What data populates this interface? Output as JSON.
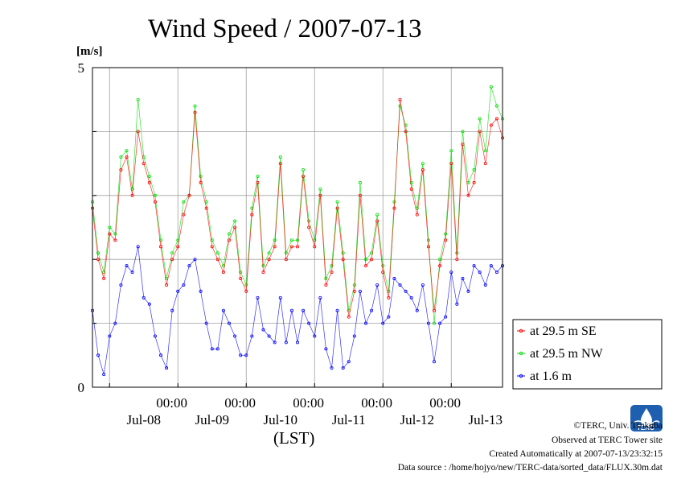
{
  "chart_data": {
    "type": "line",
    "title": "Wind Speed / 2007-07-13",
    "ylabel": "[m/s]",
    "xlabel": "(LST)",
    "ylim": [
      0,
      5
    ],
    "y_tick_labels": [
      "0",
      "5"
    ],
    "x_time_labels": [
      "00:00",
      "00:00",
      "00:00",
      "00:00",
      "00:00"
    ],
    "x_day_labels": [
      "Jul-08",
      "Jul-09",
      "Jul-10",
      "Jul-11",
      "Jul-12",
      "Jul-13"
    ],
    "x_unit": "hours since 2007-07-07 18:00 LST",
    "xlim": [
      0,
      144
    ],
    "grid": true,
    "legend_position": "right",
    "colors": {
      "at 29.5 m SE": "#ff0000",
      "at 29.5 m NW": "#00dd00",
      "at 1.6 m": "#0000ff"
    },
    "series": [
      {
        "name": "at 29.5 m SE",
        "x": [
          0,
          2,
          4,
          6,
          8,
          10,
          12,
          14,
          16,
          18,
          20,
          22,
          24,
          26,
          28,
          30,
          32,
          34,
          36,
          38,
          40,
          42,
          44,
          46,
          48,
          50,
          52,
          54,
          56,
          58,
          60,
          62,
          64,
          66,
          68,
          70,
          72,
          74,
          76,
          78,
          80,
          82,
          84,
          86,
          88,
          90,
          92,
          94,
          96,
          98,
          100,
          102,
          104,
          106,
          108,
          110,
          112,
          114,
          116,
          118,
          120,
          122,
          124,
          126,
          128,
          130,
          132,
          134,
          136,
          138,
          140,
          142,
          144
        ],
        "values": [
          2.8,
          2.0,
          1.7,
          2.4,
          2.3,
          3.4,
          3.6,
          3.0,
          4.0,
          3.5,
          3.2,
          2.9,
          2.2,
          1.6,
          2.0,
          2.2,
          2.7,
          3.0,
          4.3,
          3.2,
          2.8,
          2.2,
          2.0,
          1.8,
          2.3,
          2.5,
          1.7,
          1.5,
          2.7,
          3.2,
          1.8,
          2.0,
          2.2,
          3.5,
          2.0,
          2.2,
          2.2,
          3.3,
          2.5,
          2.2,
          3.0,
          1.6,
          1.8,
          2.8,
          2.0,
          1.1,
          1.5,
          3.0,
          1.9,
          2.0,
          2.6,
          1.8,
          1.4,
          2.8,
          4.5,
          4.0,
          3.1,
          2.7,
          3.4,
          2.2,
          1.2,
          1.9,
          2.3,
          3.5,
          2.0,
          3.8,
          3.0,
          3.2,
          4.0,
          3.5,
          4.1,
          4.2,
          3.9
        ]
      },
      {
        "name": "at 29.5 m NW",
        "x": [
          0,
          2,
          4,
          6,
          8,
          10,
          12,
          14,
          16,
          18,
          20,
          22,
          24,
          26,
          28,
          30,
          32,
          34,
          36,
          38,
          40,
          42,
          44,
          46,
          48,
          50,
          52,
          54,
          56,
          58,
          60,
          62,
          64,
          66,
          68,
          70,
          72,
          74,
          76,
          78,
          80,
          82,
          84,
          86,
          88,
          90,
          92,
          94,
          96,
          98,
          100,
          102,
          104,
          106,
          108,
          110,
          112,
          114,
          116,
          118,
          120,
          122,
          124,
          126,
          128,
          130,
          132,
          134,
          136,
          138,
          140,
          142,
          144
        ],
        "values": [
          2.9,
          2.1,
          1.8,
          2.5,
          2.4,
          3.6,
          3.7,
          3.1,
          4.5,
          3.6,
          3.3,
          3.0,
          2.3,
          1.7,
          2.1,
          2.3,
          2.9,
          3.0,
          4.4,
          3.3,
          2.9,
          2.3,
          2.1,
          1.9,
          2.4,
          2.6,
          1.8,
          1.6,
          2.8,
          3.3,
          1.9,
          2.1,
          2.3,
          3.6,
          2.1,
          2.3,
          2.3,
          3.4,
          2.6,
          2.3,
          3.1,
          1.7,
          1.9,
          2.9,
          2.1,
          1.2,
          1.6,
          3.2,
          2.0,
          2.1,
          2.7,
          1.9,
          1.5,
          2.9,
          4.4,
          4.1,
          3.2,
          2.8,
          3.5,
          2.3,
          1.0,
          2.0,
          2.4,
          3.7,
          2.1,
          4.0,
          3.2,
          3.4,
          4.2,
          3.7,
          4.7,
          4.4,
          4.2
        ]
      },
      {
        "name": "at 1.6 m",
        "x": [
          0,
          2,
          4,
          6,
          8,
          10,
          12,
          14,
          16,
          18,
          20,
          22,
          24,
          26,
          28,
          30,
          32,
          34,
          36,
          38,
          40,
          42,
          44,
          46,
          48,
          50,
          52,
          54,
          56,
          58,
          60,
          62,
          64,
          66,
          68,
          70,
          72,
          74,
          76,
          78,
          80,
          82,
          84,
          86,
          88,
          90,
          92,
          94,
          96,
          98,
          100,
          102,
          104,
          106,
          108,
          110,
          112,
          114,
          116,
          118,
          120,
          122,
          124,
          126,
          128,
          130,
          132,
          134,
          136,
          138,
          140,
          142,
          144
        ],
        "values": [
          1.2,
          0.5,
          0.2,
          0.8,
          1.0,
          1.6,
          1.9,
          1.8,
          2.2,
          1.4,
          1.3,
          0.8,
          0.5,
          0.3,
          1.2,
          1.5,
          1.6,
          1.9,
          2.0,
          1.5,
          1.0,
          0.6,
          0.6,
          1.2,
          1.0,
          0.8,
          0.5,
          0.5,
          0.8,
          1.4,
          0.9,
          0.8,
          0.7,
          1.4,
          0.7,
          1.2,
          0.7,
          1.2,
          1.0,
          0.8,
          1.4,
          0.6,
          0.3,
          1.2,
          0.3,
          0.4,
          0.8,
          1.5,
          1.0,
          1.2,
          1.6,
          1.0,
          1.1,
          1.7,
          1.6,
          1.5,
          1.4,
          1.2,
          1.6,
          1.0,
          0.4,
          1.0,
          1.1,
          1.8,
          1.3,
          1.7,
          1.5,
          1.9,
          1.8,
          1.6,
          1.9,
          1.8,
          1.9
        ]
      }
    ]
  },
  "footer": {
    "credit": "©TERC, Univ. Tsukuba",
    "observed": "Observed at TERC Tower site",
    "created": "Created Automatically at 2007-07-13/23:32:15",
    "source": "Data source : /home/hojyo/new/TERC-data/sorted_data/FLUX.30m.dat"
  },
  "logo": {
    "text": "TERC"
  }
}
